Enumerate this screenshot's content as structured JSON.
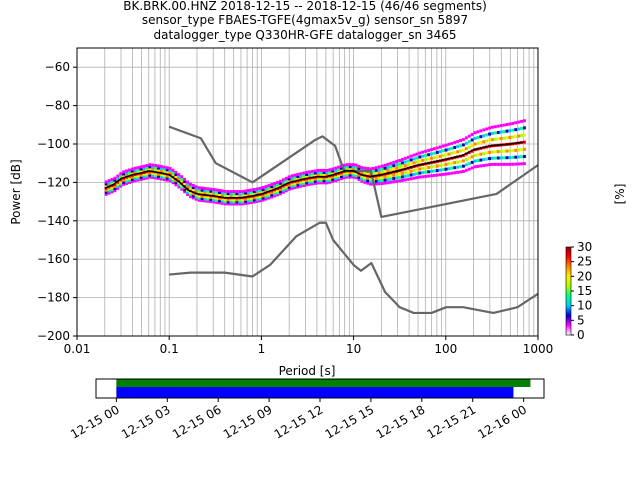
{
  "chart_data": [
    {
      "type": "line",
      "title_lines": [
        "BK.BRK.00.HNZ   2018-12-15 -- 2018-12-15  (46/46 segments)",
        "sensor_type FBAES-TGFE(4gmax5v_g) sensor_sn 5897",
        "datalogger_type Q330HR-GFE datalogger_sn 3465"
      ],
      "xlabel": "Period [s]",
      "ylabel": "Power [dB]",
      "x_scale": "log",
      "xlim": [
        0.01,
        1000
      ],
      "ylim": [
        -200,
        -50
      ],
      "x_ticks": [
        0.01,
        0.1,
        1,
        10,
        100,
        1000
      ],
      "x_tick_labels": [
        "0.01",
        "0.1",
        "1",
        "10",
        "100",
        "1000"
      ],
      "y_ticks": [
        -200,
        -180,
        -160,
        -140,
        -120,
        -100,
        -80,
        -60
      ],
      "y_tick_labels": [
        "−200",
        "−180",
        "−160",
        "−140",
        "−120",
        "−100",
        "−80",
        "−60"
      ],
      "grid": true,
      "noise_models": {
        "color": "#666666",
        "upper": {
          "x": [
            0.1,
            0.22,
            0.32,
            0.8,
            3.8,
            4.6,
            6.3,
            7.9,
            15.4,
            20,
            354.8,
            1000
          ],
          "y": [
            -91,
            -97,
            -110,
            -120,
            -98,
            -96,
            -101,
            -114,
            -114,
            -138,
            -126,
            -111
          ]
        },
        "lower": {
          "x": [
            0.1,
            0.17,
            0.4,
            0.8,
            1.24,
            2.4,
            4.3,
            5,
            6,
            10,
            12,
            15.6,
            21.9,
            31.6,
            45,
            70,
            101,
            154,
            328,
            600,
            1000
          ],
          "y": [
            -168,
            -167,
            -167,
            -169,
            -163,
            -148,
            -141,
            -141,
            -150,
            -163,
            -166,
            -162,
            -177,
            -185,
            -188,
            -188,
            -185,
            -185,
            -188,
            -185,
            -178
          ]
        }
      },
      "series": [
        {
          "color": "#000000",
          "x": [
            0.02,
            0.025,
            0.03,
            0.04,
            0.05,
            0.06,
            0.08,
            0.1,
            0.13,
            0.16,
            0.2,
            0.3,
            0.4,
            0.6,
            0.8,
            1,
            1.5,
            2,
            3,
            4,
            5,
            6,
            8,
            10,
            12,
            15,
            20,
            30,
            50,
            80,
            100,
            150,
            200,
            300,
            500,
            700
          ],
          "y": [
            -123,
            -121,
            -118,
            -116,
            -115,
            -114,
            -115,
            -116,
            -120,
            -124,
            -126,
            -127,
            -128,
            -128,
            -127,
            -126,
            -123,
            -120,
            -118,
            -117,
            -117,
            -116,
            -114,
            -114,
            -116,
            -117,
            -116,
            -114,
            -111,
            -109,
            -108,
            -106,
            -103,
            -101,
            -100,
            -99
          ]
        }
      ],
      "colorbar": {
        "label": "[%]",
        "min": 0,
        "max": 30,
        "ticks": [
          0,
          5,
          10,
          15,
          20,
          25,
          30
        ],
        "tick_labels": [
          "0",
          "5",
          "10",
          "15",
          "20",
          "25",
          "30"
        ],
        "colors": [
          "#ffffff",
          "#ff00ff",
          "#0000cc",
          "#00ccff",
          "#00ff88",
          "#aaff00",
          "#ffee00",
          "#ff8800",
          "#ff0000",
          "#990000"
        ]
      }
    },
    {
      "type": "timeline",
      "tick_labels": [
        "12-15 00",
        "12-15 03",
        "12-15 06",
        "12-15 09",
        "12-15 12",
        "12-15 15",
        "12-15 18",
        "12-15 21",
        "12-16 00"
      ],
      "xlim_hours": [
        -1.2,
        25.2
      ],
      "bars": [
        {
          "color": "#008000",
          "start_hour": 0,
          "end_hour": 24.4
        },
        {
          "color": "#0000ff",
          "start_hour": 0,
          "end_hour": 23.4
        }
      ]
    }
  ]
}
